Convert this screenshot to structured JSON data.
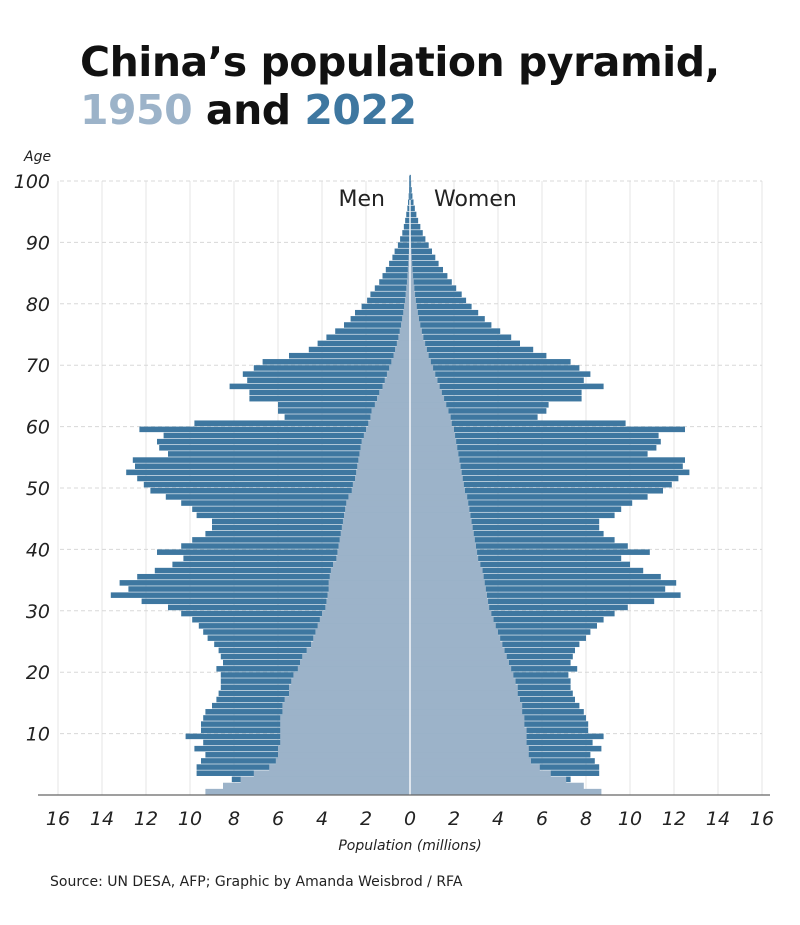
{
  "title": {
    "line1": "China’s population pyramid,",
    "year1": "1950",
    "and": " and ",
    "year2": "2022"
  },
  "source": "Source: UN DESA, AFP; Graphic by Amanda Weisbrod / RFA",
  "colors": {
    "y1950": "#9cb3c9",
    "y2022": "#3e77a0"
  },
  "chart_data": {
    "type": "bar",
    "subtype": "population-pyramid",
    "ylabel": "Age",
    "xlabel": "Population (millions)",
    "side_labels": {
      "left": "Men",
      "right": "Women"
    },
    "xlim": [
      -16,
      16
    ],
    "ylim": [
      0,
      100
    ],
    "x_ticks": [
      "16",
      "14",
      "12",
      "10",
      "8",
      "6",
      "4",
      "2",
      "0",
      "2",
      "4",
      "6",
      "8",
      "10",
      "12",
      "14",
      "16"
    ],
    "y_ticks": [
      "10",
      "20",
      "30",
      "40",
      "50",
      "60",
      "70",
      "80",
      "90",
      "100"
    ],
    "grid": true,
    "ages_from": 0,
    "series": [
      {
        "year": "2022",
        "sex": "men",
        "values": [
          4.8,
          5.5,
          8.1,
          9.7,
          9.7,
          9.5,
          9.3,
          9.8,
          9.4,
          10.2,
          9.5,
          9.5,
          9.4,
          9.3,
          9.0,
          8.8,
          8.7,
          8.6,
          8.6,
          8.6,
          8.8,
          8.5,
          8.6,
          8.7,
          8.9,
          9.2,
          9.4,
          9.6,
          9.9,
          10.4,
          11.0,
          12.2,
          13.6,
          12.8,
          13.2,
          12.4,
          11.6,
          10.8,
          10.3,
          11.5,
          10.4,
          9.9,
          9.3,
          9.0,
          9.0,
          9.7,
          9.9,
          10.4,
          11.1,
          11.8,
          12.1,
          12.4,
          12.9,
          12.5,
          12.6,
          11.0,
          11.4,
          11.5,
          11.2,
          12.3,
          9.8,
          5.7,
          6.0,
          6.0,
          7.3,
          7.3,
          8.2,
          7.4,
          7.6,
          7.1,
          6.7,
          5.5,
          4.6,
          4.2,
          3.8,
          3.4,
          3.0,
          2.7,
          2.5,
          2.2,
          1.95,
          1.8,
          1.6,
          1.4,
          1.25,
          1.1,
          0.95,
          0.8,
          0.7,
          0.55,
          0.45,
          0.35,
          0.28,
          0.22,
          0.17,
          0.12,
          0.09,
          0.06,
          0.04,
          0.03,
          0.02
        ]
      },
      {
        "year": "2022",
        "sex": "women",
        "values": [
          4.4,
          5.0,
          7.3,
          8.6,
          8.6,
          8.4,
          8.2,
          8.7,
          8.3,
          8.8,
          8.1,
          8.1,
          8.0,
          7.9,
          7.7,
          7.5,
          7.4,
          7.3,
          7.3,
          7.2,
          7.6,
          7.3,
          7.4,
          7.5,
          7.7,
          8.0,
          8.2,
          8.5,
          8.8,
          9.3,
          9.9,
          11.1,
          12.3,
          11.6,
          12.1,
          11.4,
          10.6,
          10.0,
          9.6,
          10.9,
          9.9,
          9.3,
          8.8,
          8.6,
          8.6,
          9.3,
          9.6,
          10.1,
          10.8,
          11.5,
          11.9,
          12.2,
          12.7,
          12.4,
          12.5,
          10.8,
          11.2,
          11.4,
          11.3,
          12.5,
          9.8,
          5.8,
          6.2,
          6.3,
          7.8,
          7.8,
          8.8,
          7.9,
          8.2,
          7.7,
          7.3,
          6.2,
          5.6,
          5.0,
          4.6,
          4.1,
          3.7,
          3.4,
          3.1,
          2.8,
          2.55,
          2.35,
          2.1,
          1.9,
          1.7,
          1.5,
          1.3,
          1.15,
          1.0,
          0.85,
          0.7,
          0.58,
          0.47,
          0.37,
          0.29,
          0.22,
          0.16,
          0.11,
          0.08,
          0.05,
          0.04
        ]
      },
      {
        "year": "1950",
        "sex": "men",
        "values": [
          9.3,
          8.5,
          7.7,
          7.1,
          6.4,
          6.1,
          6.0,
          6.0,
          5.9,
          5.9,
          5.9,
          5.9,
          5.9,
          5.8,
          5.8,
          5.7,
          5.5,
          5.5,
          5.4,
          5.3,
          5.1,
          5.0,
          4.9,
          4.7,
          4.5,
          4.4,
          4.3,
          4.2,
          4.1,
          4.0,
          3.85,
          3.8,
          3.75,
          3.7,
          3.7,
          3.65,
          3.6,
          3.5,
          3.35,
          3.3,
          3.25,
          3.2,
          3.15,
          3.1,
          3.05,
          3.0,
          2.95,
          2.9,
          2.8,
          2.65,
          2.6,
          2.5,
          2.45,
          2.4,
          2.35,
          2.3,
          2.25,
          2.2,
          2.1,
          2.0,
          1.9,
          1.8,
          1.75,
          1.6,
          1.5,
          1.4,
          1.25,
          1.15,
          1.05,
          0.95,
          0.85,
          0.75,
          0.68,
          0.6,
          0.53,
          0.47,
          0.41,
          0.36,
          0.31,
          0.27,
          0.23,
          0.2,
          0.17,
          0.14,
          0.12,
          0.1,
          0.08,
          0.065,
          0.05,
          0.04,
          0.03,
          0.025,
          0.02,
          0.015,
          0.012,
          0.01,
          0.008,
          0.006,
          0.004,
          0.003,
          0.002
        ]
      },
      {
        "year": "1950",
        "sex": "women",
        "values": [
          8.7,
          7.9,
          7.1,
          6.4,
          5.9,
          5.5,
          5.4,
          5.4,
          5.3,
          5.3,
          5.3,
          5.2,
          5.2,
          5.1,
          5.1,
          5.0,
          4.9,
          4.9,
          4.8,
          4.7,
          4.6,
          4.5,
          4.4,
          4.3,
          4.2,
          4.1,
          4.0,
          3.9,
          3.8,
          3.7,
          3.6,
          3.55,
          3.5,
          3.45,
          3.4,
          3.35,
          3.3,
          3.2,
          3.1,
          3.05,
          3.0,
          2.95,
          2.9,
          2.85,
          2.8,
          2.75,
          2.7,
          2.65,
          2.6,
          2.5,
          2.45,
          2.4,
          2.35,
          2.3,
          2.25,
          2.2,
          2.15,
          2.1,
          2.05,
          2.0,
          1.9,
          1.85,
          1.75,
          1.65,
          1.55,
          1.45,
          1.35,
          1.25,
          1.15,
          1.05,
          0.95,
          0.85,
          0.77,
          0.69,
          0.61,
          0.54,
          0.47,
          0.41,
          0.36,
          0.31,
          0.27,
          0.23,
          0.2,
          0.17,
          0.14,
          0.12,
          0.1,
          0.08,
          0.065,
          0.05,
          0.04,
          0.03,
          0.025,
          0.02,
          0.015,
          0.012,
          0.01,
          0.008,
          0.006,
          0.004,
          0.003
        ]
      }
    ]
  }
}
